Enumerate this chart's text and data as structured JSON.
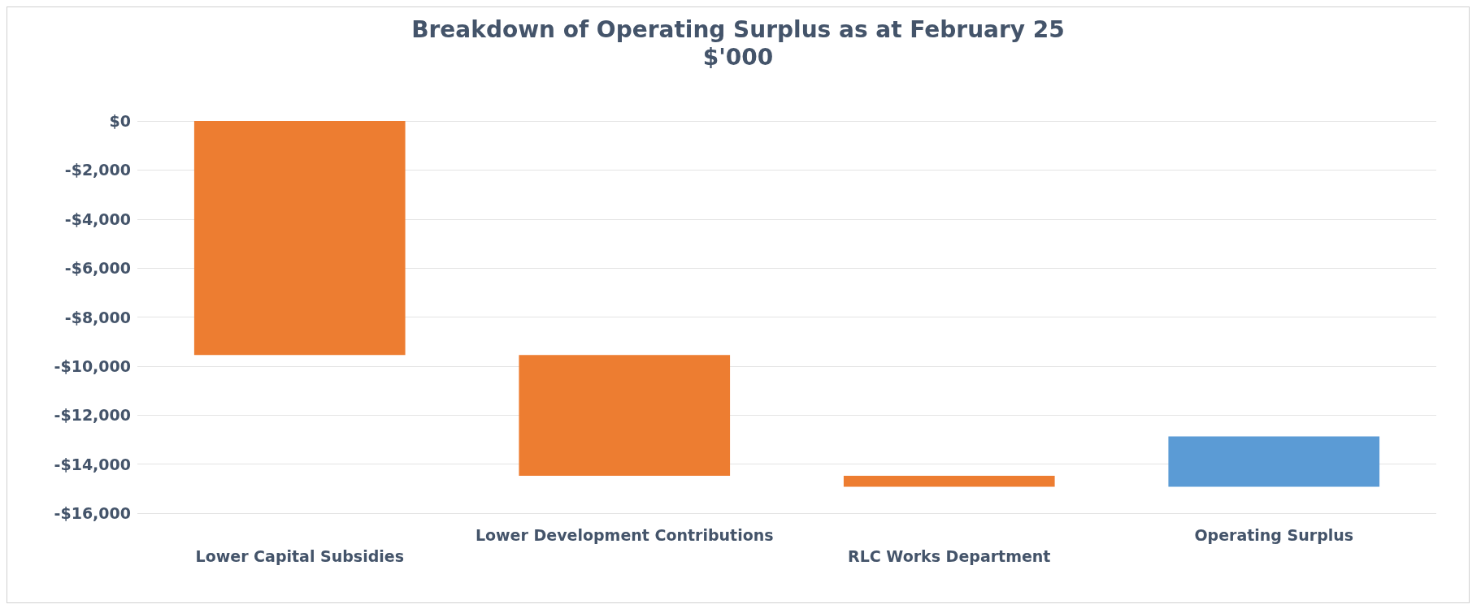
{
  "chart_data": {
    "type": "bar",
    "title": "Breakdown of Operating Surplus as at February 25",
    "subtitle": "$'000",
    "categories": [
      "Lower Capital Subsidies",
      "Lower Development Contributions",
      "RLC Works Department",
      "Operating Surplus"
    ],
    "base": [
      0,
      -9550,
      -14480,
      -14920
    ],
    "values": [
      -9550,
      -4930,
      -440,
      2050
    ],
    "colors": [
      "#ed7d31",
      "#ed7d31",
      "#ed7d31",
      "#5b9bd5"
    ],
    "ylim": [
      -16000,
      0
    ],
    "yticks": [
      {
        "value": -16000,
        "label": "-$16,000"
      },
      {
        "value": -14000,
        "label": "-$14,000"
      },
      {
        "value": -12000,
        "label": "-$12,000"
      },
      {
        "value": -10000,
        "label": "-$10,000"
      },
      {
        "value": -8000,
        "label": "-$8,000"
      },
      {
        "value": -6000,
        "label": "-$6,000"
      },
      {
        "value": -4000,
        "label": "-$4,000"
      },
      {
        "value": -2000,
        "label": "-$2,000"
      },
      {
        "value": 0,
        "label": "$0"
      }
    ],
    "grid": "y"
  }
}
